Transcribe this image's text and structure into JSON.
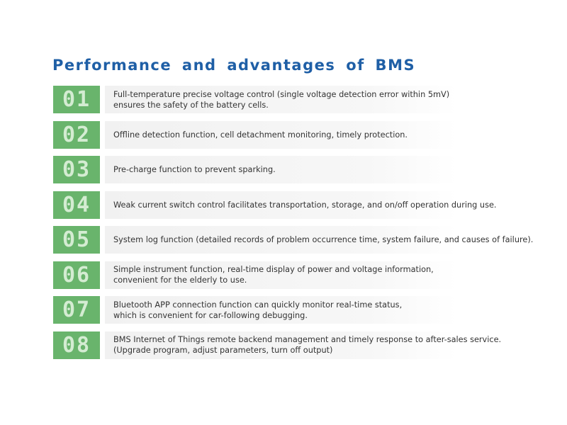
{
  "header": {
    "title": "Performance and advantages of BMS"
  },
  "items": [
    {
      "number": "01",
      "lines": [
        "Full-temperature precise voltage control (single voltage detection error within 5mV)",
        "ensures the safety of the battery cells."
      ]
    },
    {
      "number": "02",
      "lines": [
        "Offline detection function, cell detachment monitoring, timely protection."
      ]
    },
    {
      "number": "03",
      "lines": [
        "Pre-charge function to prevent sparking."
      ]
    },
    {
      "number": "04",
      "lines": [
        "Weak current switch control facilitates transportation, storage, and on/off operation during use."
      ]
    },
    {
      "number": "05",
      "lines": [
        "System log function (detailed records of problem occurrence time, system failure, and causes of failure)."
      ]
    },
    {
      "number": "06",
      "lines": [
        "Simple instrument function, real-time display of power and voltage information,",
        "convenient for the elderly to use."
      ]
    },
    {
      "number": "07",
      "lines": [
        "Bluetooth APP connection function can quickly monitor real-time status,",
        "which is convenient for car-following debugging."
      ]
    },
    {
      "number": "08",
      "lines": [
        "BMS Internet of Things remote backend management and timely response to after-sales service.",
        "(Upgrade program, adjust parameters, turn off output)"
      ]
    }
  ]
}
